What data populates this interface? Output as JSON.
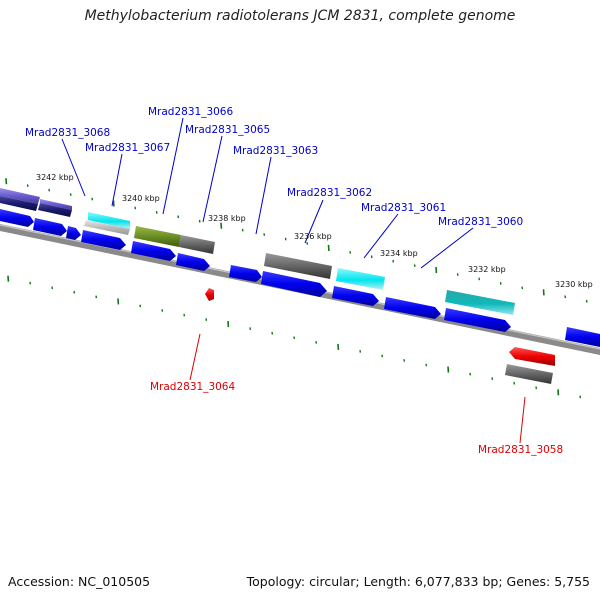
{
  "title": "Methylobacterium radiotolerans JCM 2831, complete genome",
  "footer": {
    "accession": "Accession: NC_010505",
    "summary": "Topology: circular; Length: 6,077,833 bp; Genes: 5,755"
  },
  "scale_labels": [
    "3242 kbp",
    "3240 kbp",
    "3238 kbp",
    "3236 kbp",
    "3234 kbp",
    "3232 kbp",
    "3230 kbp"
  ],
  "gene_labels": {
    "g3068": "Mrad2831_3068",
    "g3067": "Mrad2831_3067",
    "g3066": "Mrad2831_3066",
    "g3065": "Mrad2831_3065",
    "g3063": "Mrad2831_3063",
    "g3062": "Mrad2831_3062",
    "g3061": "Mrad2831_3061",
    "g3060": "Mrad2831_3060",
    "g3064": "Mrad2831_3064",
    "g3058": "Mrad2831_3058"
  },
  "colors": {
    "forward_label": "#0000cc",
    "reverse_label": "#dd0000",
    "cds": "#0000ee",
    "tick": "#117711",
    "backbone": "#888888",
    "highlight_cyan": "#00e5ee",
    "highlight_olive": "#6b8e23",
    "highlight_grey": "#666666",
    "highlight_teal": "#10b8b8",
    "highlight_red": "#ee0000",
    "highlight_navy": "#1a1a6e",
    "highlight_slate": "#6a5acd"
  }
}
